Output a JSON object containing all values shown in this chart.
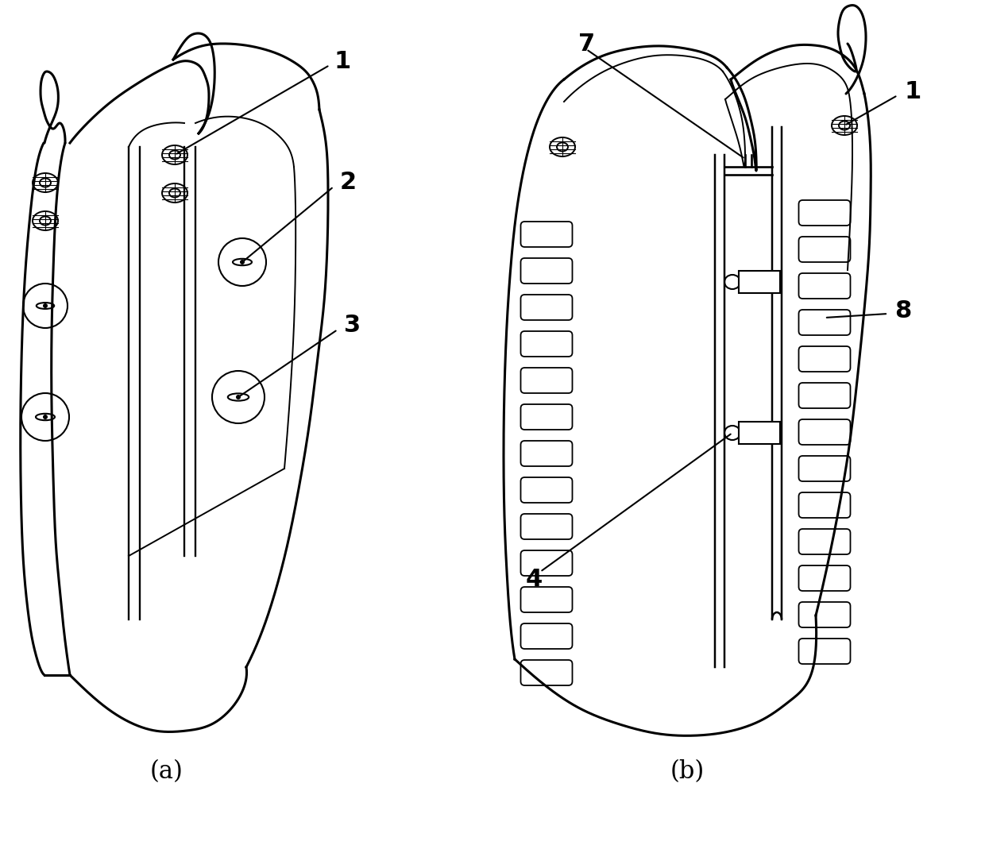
{
  "background_color": "#ffffff",
  "line_color": "#000000",
  "label_a": "(a)",
  "label_b": "(b)",
  "lw_outer": 2.2,
  "lw_inner": 1.4,
  "figsize": [
    12.4,
    10.69
  ],
  "dpi": 100
}
